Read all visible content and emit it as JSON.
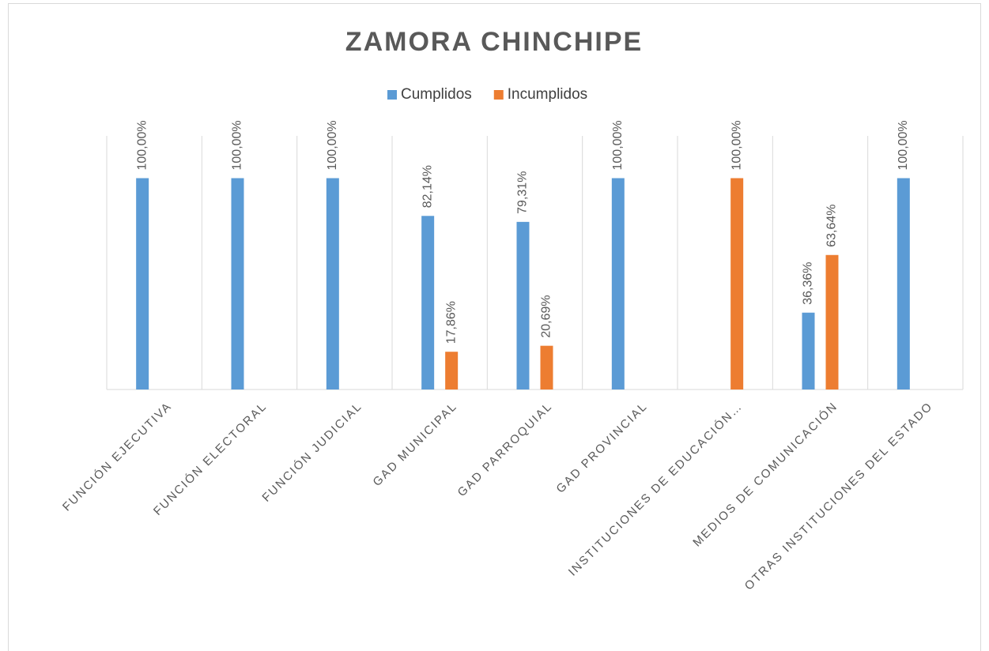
{
  "chart_data": {
    "type": "bar",
    "title": "ZAMORA CHINCHIPE",
    "categories": [
      "FUNCIÓN EJECUTIVA",
      "FUNCIÓN ELECTORAL",
      "FUNCIÓN JUDICIAL",
      "GAD MUNICIPAL",
      "GAD PARROQUIAL",
      "GAD PROVINCIAL",
      "INSTITUCIONES DE EDUCACIÓN…",
      "MEDIOS DE COMUNICACIÓN",
      "OTRAS INSTITUCIONES DEL ESTADO"
    ],
    "series": [
      {
        "name": "Cumplidos",
        "color": "#5b9bd5",
        "values": [
          100,
          100,
          100,
          82.14,
          79.31,
          100,
          null,
          36.36,
          100
        ],
        "value_labels": [
          "100,00%",
          "100,00%",
          "100,00%",
          "82,14%",
          "79,31%",
          "100,00%",
          null,
          "36,36%",
          "100,00%"
        ]
      },
      {
        "name": "Incumplidos",
        "color": "#ed7d31",
        "values": [
          null,
          null,
          null,
          17.86,
          20.69,
          null,
          100,
          63.64,
          null
        ],
        "value_labels": [
          null,
          null,
          null,
          "17,86%",
          "20,69%",
          null,
          "100,00%",
          "63,64%",
          null
        ]
      }
    ],
    "ylim": [
      0,
      120
    ],
    "legend": "top"
  }
}
